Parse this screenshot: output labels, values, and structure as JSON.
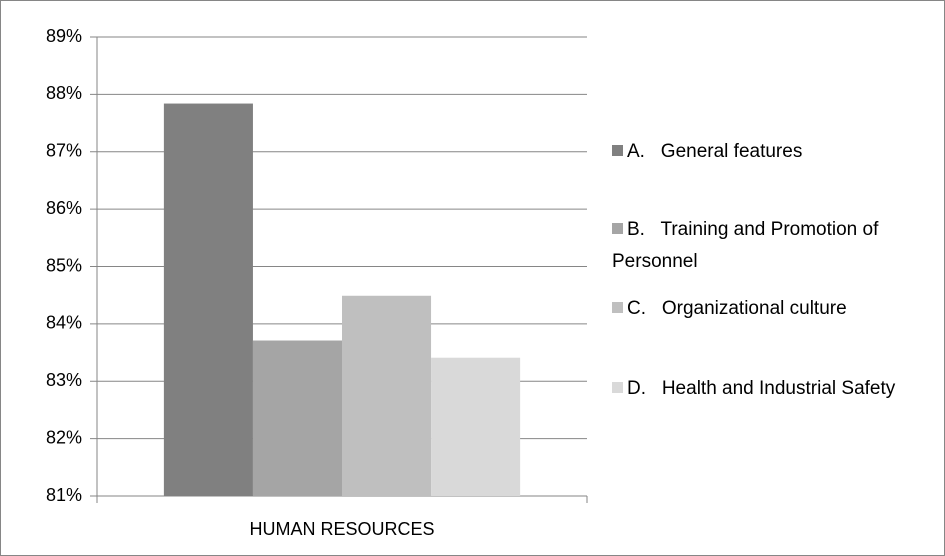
{
  "chart_data": {
    "type": "bar",
    "categories": [
      "HUMAN RESOURCES"
    ],
    "series": [
      {
        "name": "A.   General features",
        "color": "#808080",
        "values": [
          87.84
        ]
      },
      {
        "name": "B.   Training and Promotion of Personnel",
        "color": "#a5a5a5",
        "values": [
          83.71
        ]
      },
      {
        "name": "C.   Organizational culture",
        "color": "#bfbfbf",
        "values": [
          84.49
        ]
      },
      {
        "name": "D.   Health and Industrial Safety",
        "color": "#d9d9d9",
        "values": [
          83.41
        ]
      }
    ],
    "ylim": [
      81,
      89
    ],
    "yticks": [
      {
        "value": 81,
        "label": "81%"
      },
      {
        "value": 82,
        "label": "82%"
      },
      {
        "value": 83,
        "label": "83%"
      },
      {
        "value": 84,
        "label": "84%"
      },
      {
        "value": 85,
        "label": "85%"
      },
      {
        "value": 86,
        "label": "86%"
      },
      {
        "value": 87,
        "label": "87%"
      },
      {
        "value": 88,
        "label": "88%"
      },
      {
        "value": 89,
        "label": "89%"
      }
    ],
    "grid": true,
    "legend": "right"
  }
}
